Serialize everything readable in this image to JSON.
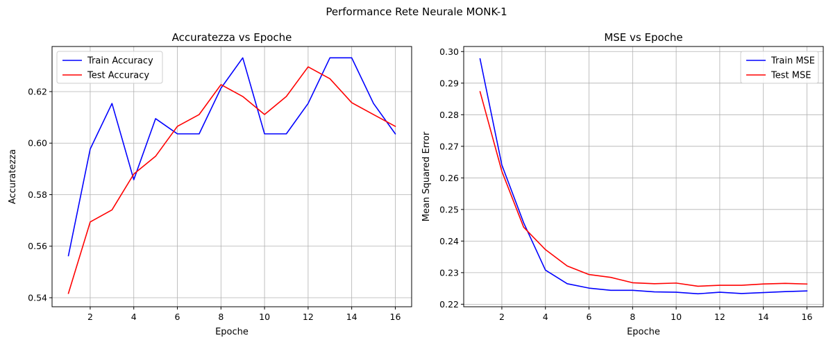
{
  "figure": {
    "title": "Performance Rete Neurale MONK-1"
  },
  "chart_data": [
    {
      "type": "line",
      "title": "Accuratezza vs Epoche",
      "xlabel": "Epoche",
      "ylabel": "Accuratezza",
      "x": [
        1,
        2,
        3,
        4,
        5,
        6,
        7,
        8,
        9,
        10,
        11,
        12,
        13,
        14,
        15,
        16
      ],
      "xlim": [
        0.25,
        16.75
      ],
      "ylim": [
        0.5365,
        0.6375
      ],
      "xticks": [
        2,
        4,
        6,
        8,
        10,
        12,
        14,
        16
      ],
      "yticks": [
        0.54,
        0.56,
        0.58,
        0.6,
        0.62
      ],
      "ytick_labels": [
        "0.54",
        "0.56",
        "0.58",
        "0.60",
        "0.62"
      ],
      "grid": true,
      "legend": "upper-left",
      "series": [
        {
          "name": "Train Accuracy",
          "color": "#0000ff",
          "values": [
            0.5563,
            0.5977,
            0.6154,
            0.5858,
            0.6095,
            0.6036,
            0.6036,
            0.6213,
            0.6331,
            0.6036,
            0.6036,
            0.6154,
            0.6331,
            0.6331,
            0.6154,
            0.6036
          ]
        },
        {
          "name": "Test Accuracy",
          "color": "#ff0000",
          "values": [
            0.5417,
            0.5694,
            0.5741,
            0.588,
            0.5949,
            0.6065,
            0.6111,
            0.6227,
            0.6181,
            0.6111,
            0.6181,
            0.6296,
            0.625,
            0.6157,
            0.6111,
            0.6065
          ]
        }
      ]
    },
    {
      "type": "line",
      "title": "MSE vs Epoche",
      "xlabel": "Epoche",
      "ylabel": "Mean Squared Error",
      "x": [
        1,
        2,
        3,
        4,
        5,
        6,
        7,
        8,
        9,
        10,
        11,
        12,
        13,
        14,
        15,
        16
      ],
      "xlim": [
        0.25,
        16.75
      ],
      "ylim": [
        0.2192,
        0.3016
      ],
      "xticks": [
        2,
        4,
        6,
        8,
        10,
        12,
        14,
        16
      ],
      "yticks": [
        0.22,
        0.23,
        0.24,
        0.25,
        0.26,
        0.27,
        0.28,
        0.29,
        0.3
      ],
      "ytick_labels": [
        "0.22",
        "0.23",
        "0.24",
        "0.25",
        "0.26",
        "0.27",
        "0.28",
        "0.29",
        "0.30"
      ],
      "grid": true,
      "legend": "upper-right",
      "series": [
        {
          "name": "Train MSE",
          "color": "#0000ff",
          "values": [
            0.2977,
            0.2641,
            0.2458,
            0.2308,
            0.2265,
            0.2251,
            0.2244,
            0.2244,
            0.2239,
            0.2238,
            0.2233,
            0.2238,
            0.2234,
            0.2237,
            0.224,
            0.2242
          ]
        },
        {
          "name": "Test MSE",
          "color": "#ff0000",
          "values": [
            0.2873,
            0.2621,
            0.2444,
            0.2373,
            0.2321,
            0.2294,
            0.2285,
            0.2268,
            0.2265,
            0.2267,
            0.2257,
            0.226,
            0.226,
            0.2264,
            0.2266,
            0.2264
          ]
        }
      ]
    }
  ]
}
